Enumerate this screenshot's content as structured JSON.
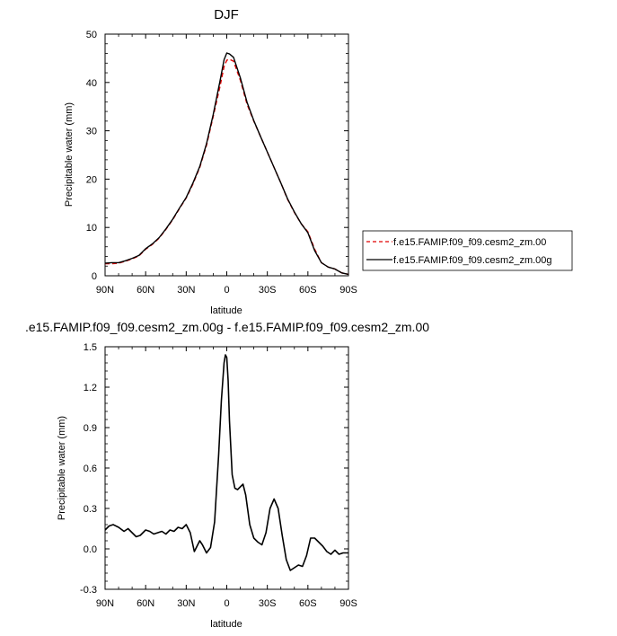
{
  "chart_data": [
    {
      "type": "line",
      "title": "DJF",
      "xlabel": "latitude",
      "ylabel": "Precipitable water (mm)",
      "xlim": [
        90,
        -90
      ],
      "ylim": [
        0,
        50
      ],
      "xticks": [
        90,
        60,
        30,
        0,
        -30,
        -60,
        -90
      ],
      "xtick_labels": [
        "90N",
        "60N",
        "30N",
        "0",
        "30S",
        "60S",
        "90S"
      ],
      "yticks": [
        0,
        10,
        20,
        30,
        40,
        50
      ],
      "ytick_labels": [
        "0",
        "10",
        "20",
        "30",
        "40",
        "50"
      ],
      "legend_position": "right",
      "series": [
        {
          "name": "f.e15.FAMIP.f09_f09.cesm2_zm.00",
          "color": "#e00000",
          "dash": "dashed",
          "x": [
            90,
            85,
            80,
            75,
            70,
            65,
            60,
            55,
            50,
            45,
            40,
            35,
            30,
            25,
            20,
            15,
            10,
            5,
            2,
            0,
            -2,
            -5,
            -10,
            -15,
            -20,
            -25,
            -30,
            -35,
            -40,
            -45,
            -50,
            -55,
            -60,
            -65,
            -70,
            -75,
            -80,
            -85,
            -90
          ],
          "y": [
            2.5,
            2.5,
            2.6,
            3.0,
            3.5,
            4.1,
            5.5,
            6.5,
            7.8,
            9.6,
            11.6,
            13.9,
            16.1,
            19.0,
            22.4,
            27.0,
            33.0,
            39.2,
            43.3,
            44.6,
            44.8,
            44.4,
            40.5,
            35.5,
            32.0,
            28.8,
            25.6,
            22.4,
            19.2,
            15.8,
            13.1,
            10.8,
            9.1,
            5.5,
            2.7,
            1.8,
            1.4,
            0.6,
            0.3
          ]
        },
        {
          "name": "f.e15.FAMIP.f09_f09.cesm2_zm.00g",
          "color": "#000000",
          "dash": "solid",
          "x": [
            90,
            85,
            80,
            75,
            70,
            65,
            60,
            55,
            50,
            45,
            40,
            35,
            30,
            25,
            20,
            15,
            10,
            5,
            2,
            0,
            -2,
            -5,
            -10,
            -15,
            -20,
            -25,
            -30,
            -35,
            -40,
            -45,
            -50,
            -55,
            -60,
            -65,
            -70,
            -75,
            -80,
            -85,
            -90
          ],
          "y": [
            2.6,
            2.7,
            2.7,
            3.1,
            3.6,
            4.2,
            5.6,
            6.6,
            7.9,
            9.7,
            11.7,
            14.0,
            16.2,
            19.2,
            22.6,
            27.3,
            33.4,
            40.3,
            44.7,
            46.1,
            45.9,
            45.2,
            41.0,
            35.9,
            32.1,
            28.8,
            25.6,
            22.4,
            19.2,
            15.9,
            13.2,
            10.8,
            8.9,
            5.2,
            2.7,
            1.8,
            1.4,
            0.6,
            0.3
          ]
        }
      ]
    },
    {
      "type": "line",
      "title": ".e15.FAMIP.f09_f09.cesm2_zm.00g - f.e15.FAMIP.f09_f09.cesm2_zm.00",
      "xlabel": "latitude",
      "ylabel": "Precipitable water (mm)",
      "xlim": [
        90,
        -90
      ],
      "ylim": [
        -0.3,
        1.5
      ],
      "xticks": [
        90,
        60,
        30,
        0,
        -30,
        -60,
        -90
      ],
      "xtick_labels": [
        "90N",
        "60N",
        "30N",
        "0",
        "30S",
        "60S",
        "90S"
      ],
      "yticks": [
        -0.3,
        0.0,
        0.3,
        0.6,
        0.9,
        1.2,
        1.5
      ],
      "ytick_labels": [
        "-0.3",
        "0.0",
        "0.3",
        "0.6",
        "0.9",
        "1.2",
        "1.5"
      ],
      "series": [
        {
          "color": "#000000",
          "dash": "solid",
          "x": [
            90,
            87,
            84,
            80,
            76,
            73,
            70,
            67,
            64,
            60,
            57,
            54,
            51,
            48,
            45,
            42,
            39,
            36,
            33,
            30,
            27,
            24,
            22,
            20,
            18,
            15,
            12,
            9,
            6,
            4,
            2,
            1,
            0,
            -1,
            -2,
            -4,
            -6,
            -8,
            -10,
            -12,
            -14,
            -17,
            -20,
            -23,
            -26,
            -29,
            -32,
            -35,
            -38,
            -41,
            -44,
            -47,
            -50,
            -53,
            -56,
            -59,
            -62,
            -65,
            -68,
            -71,
            -74,
            -77,
            -80,
            -83,
            -86,
            -90
          ],
          "y": [
            0.14,
            0.17,
            0.18,
            0.16,
            0.13,
            0.15,
            0.12,
            0.09,
            0.1,
            0.14,
            0.13,
            0.11,
            0.12,
            0.13,
            0.11,
            0.14,
            0.13,
            0.16,
            0.15,
            0.18,
            0.12,
            -0.02,
            0.02,
            0.06,
            0.03,
            -0.03,
            0.01,
            0.2,
            0.7,
            1.1,
            1.38,
            1.44,
            1.42,
            1.25,
            0.95,
            0.55,
            0.45,
            0.44,
            0.46,
            0.48,
            0.4,
            0.18,
            0.08,
            0.05,
            0.03,
            0.12,
            0.3,
            0.37,
            0.3,
            0.1,
            -0.08,
            -0.16,
            -0.14,
            -0.12,
            -0.13,
            -0.05,
            0.08,
            0.08,
            0.05,
            0.02,
            -0.02,
            -0.04,
            -0.01,
            -0.04,
            -0.03,
            -0.03
          ]
        }
      ]
    }
  ]
}
